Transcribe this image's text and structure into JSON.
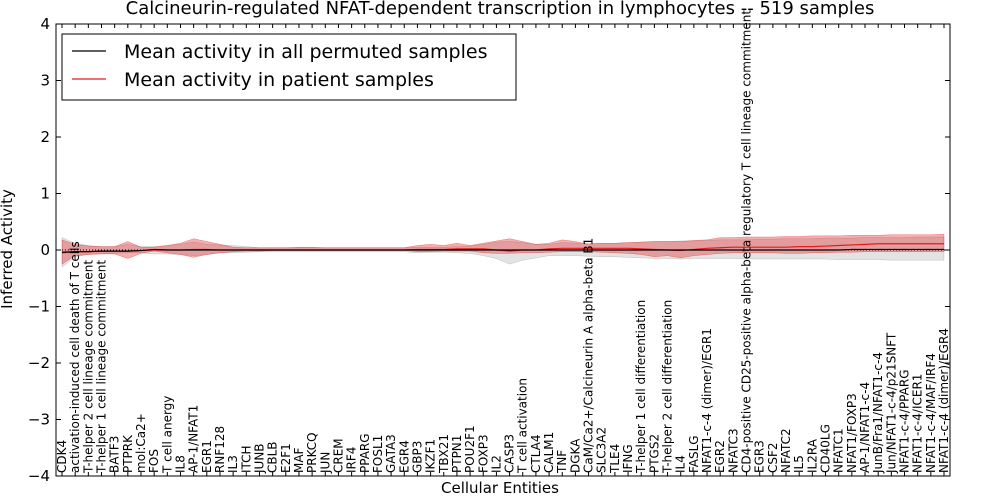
{
  "chart_data": {
    "type": "line",
    "title": "Calcineurin-regulated NFAT-dependent transcription in lymphocytes -- 519 samples",
    "xlabel": "Cellular Entities",
    "ylabel": "Inferred Activity",
    "ylim": [
      -4,
      4
    ],
    "yticks": [
      -4,
      -3,
      -2,
      -1,
      0,
      1,
      2,
      3,
      4
    ],
    "ytick_labels": [
      "−4",
      "−3",
      "−2",
      "−1",
      "0",
      "1",
      "2",
      "3",
      "4"
    ],
    "legend_position": "top-left",
    "categories": [
      "CDK4",
      "activation-induced cell death of T cells",
      "T-helper 2 cell lineage commitment",
      "T-helper 1 cell lineage commitment",
      "BATF3",
      "PTPRK",
      "mol:Ca2+",
      "FOS",
      "T cell anergy",
      "IL8",
      "AP-1/NFAT1",
      "EGR1",
      "RNF128",
      "IL3",
      "ITCH",
      "JUNB",
      "CBLB",
      "E2F1",
      "MAF",
      "PRKCQ",
      "JUN",
      "CREM",
      "IRF4",
      "PPARG",
      "FOSL1",
      "GATA3",
      "EGR4",
      "GBP3",
      "IKZF1",
      "TBX21",
      "PTPN1",
      "POU2F1",
      "FOXP3",
      "IL2",
      "CASP3",
      "T cell activation",
      "CTLA4",
      "CALM1",
      "TNF",
      "DGKA",
      "CaM/Ca2+/Calcineurin A alpha-beta B1",
      "SLC3A2",
      "TLE4",
      "IFNG",
      "T-helper 1 cell differentiation",
      "PTGS2",
      "T-helper 2 cell differentiation",
      "IL4",
      "FASLG",
      "NFAT1-c-4 (dimer)/EGR1",
      "EGR2",
      "NFATC3",
      "CD4-positive CD25-positive alpha-beta regulatory T cell lineage commitment",
      "EGR3",
      "CSF2",
      "NFATC2",
      "IL5",
      "IL2RA",
      "CD40LG",
      "NFATC1",
      "NFAT1/FOXP3",
      "AP-1/NFAT1-c-4",
      "JunB/Fra1/NFAT1-c-4",
      "Jun/NFAT1-c-4/p21SNFT",
      "NFAT1-c-4/PPARG",
      "NFAT1-c-4/ICER1",
      "NFAT1-c-4/MAF/IRF4",
      "NFAT1-c-4 (dimer)/EGR4"
    ],
    "series": [
      {
        "name": "Mean activity in all permuted samples",
        "color": "#000000",
        "values": [
          -0.04,
          -0.03,
          -0.03,
          -0.02,
          -0.02,
          -0.02,
          -0.01,
          0.01,
          0.0,
          0.0,
          0.0,
          0.0,
          0.0,
          0.0,
          0.0,
          0.0,
          0.0,
          0.0,
          0.0,
          0.0,
          0.0,
          0.0,
          0.0,
          0.0,
          0.0,
          0.0,
          0.0,
          0.0,
          0.0,
          0.0,
          0.0,
          0.0,
          0.0,
          0.0,
          0.0,
          0.0,
          0.0,
          0.0,
          0.0,
          0.0,
          0.0,
          0.0,
          0.0,
          0.0,
          0.0,
          0.0,
          0.0,
          0.0,
          0.0,
          0.0,
          0.0,
          0.0,
          0.0,
          0.0,
          0.0,
          0.0,
          0.0,
          0.0,
          0.0,
          0.0,
          0.01,
          0.01,
          0.01,
          0.01,
          0.01,
          0.01,
          0.01,
          0.01
        ],
        "band_low": [
          -0.3,
          -0.12,
          -0.08,
          -0.06,
          -0.06,
          -0.05,
          -0.05,
          -0.07,
          -0.07,
          -0.08,
          -0.1,
          -0.08,
          -0.05,
          -0.05,
          -0.04,
          -0.03,
          -0.03,
          -0.03,
          -0.03,
          -0.03,
          -0.03,
          -0.03,
          -0.03,
          -0.03,
          -0.03,
          -0.03,
          -0.03,
          -0.05,
          -0.04,
          -0.04,
          -0.05,
          -0.06,
          -0.1,
          -0.15,
          -0.25,
          -0.18,
          -0.14,
          -0.1,
          -0.1,
          -0.1,
          -0.11,
          -0.12,
          -0.12,
          -0.13,
          -0.14,
          -0.15,
          -0.15,
          -0.16,
          -0.15,
          -0.15,
          -0.15,
          -0.15,
          -0.16,
          -0.16,
          -0.16,
          -0.16,
          -0.16,
          -0.16,
          -0.16,
          -0.17,
          -0.17,
          -0.17,
          -0.17,
          -0.18,
          -0.18,
          -0.18,
          -0.18,
          -0.18
        ],
        "band_high": [
          0.22,
          0.12,
          0.08,
          0.06,
          0.06,
          0.1,
          0.06,
          0.06,
          0.08,
          0.1,
          0.14,
          0.1,
          0.09,
          0.08,
          0.06,
          0.04,
          0.04,
          0.04,
          0.04,
          0.04,
          0.04,
          0.04,
          0.04,
          0.04,
          0.04,
          0.04,
          0.04,
          0.05,
          0.05,
          0.05,
          0.06,
          0.07,
          0.1,
          0.14,
          0.15,
          0.13,
          0.1,
          0.1,
          0.13,
          0.12,
          0.12,
          0.12,
          0.12,
          0.13,
          0.14,
          0.15,
          0.15,
          0.16,
          0.16,
          0.17,
          0.18,
          0.18,
          0.18,
          0.19,
          0.19,
          0.2,
          0.2,
          0.2,
          0.21,
          0.21,
          0.21,
          0.22,
          0.22,
          0.22,
          0.22,
          0.23,
          0.23,
          0.23
        ]
      },
      {
        "name": "Mean activity in patient samples",
        "color": "#e31a1c",
        "values": [
          -0.05,
          -0.03,
          -0.03,
          -0.02,
          -0.02,
          -0.02,
          -0.01,
          0.0,
          0.0,
          0.0,
          0.01,
          0.01,
          0.0,
          0.0,
          0.0,
          0.0,
          0.0,
          0.0,
          0.0,
          0.0,
          0.0,
          0.0,
          0.0,
          0.0,
          0.0,
          0.0,
          0.0,
          0.01,
          0.01,
          0.01,
          0.02,
          0.02,
          0.02,
          0.0,
          -0.02,
          0.0,
          0.0,
          0.02,
          0.03,
          0.03,
          0.03,
          0.03,
          0.03,
          0.03,
          0.02,
          0.01,
          0.0,
          -0.01,
          0.01,
          0.03,
          0.04,
          0.05,
          0.05,
          0.05,
          0.05,
          0.05,
          0.06,
          0.06,
          0.07,
          0.08,
          0.09,
          0.1,
          0.11,
          0.11,
          0.11,
          0.11,
          0.11,
          0.11
        ],
        "band_low": [
          -0.25,
          -0.1,
          -0.08,
          -0.07,
          -0.07,
          -0.15,
          -0.06,
          -0.02,
          -0.05,
          -0.08,
          -0.13,
          -0.08,
          -0.05,
          -0.03,
          -0.02,
          -0.02,
          -0.01,
          -0.01,
          -0.01,
          -0.01,
          -0.01,
          -0.01,
          -0.01,
          -0.01,
          -0.01,
          -0.01,
          -0.01,
          -0.03,
          -0.03,
          -0.02,
          -0.02,
          -0.02,
          -0.05,
          -0.06,
          -0.06,
          -0.05,
          -0.05,
          -0.04,
          -0.03,
          -0.03,
          -0.03,
          -0.04,
          -0.05,
          -0.06,
          -0.08,
          -0.12,
          -0.1,
          -0.14,
          -0.1,
          -0.08,
          -0.06,
          -0.05,
          -0.05,
          -0.05,
          -0.05,
          -0.06,
          -0.06,
          -0.05,
          -0.05,
          -0.04,
          -0.04,
          -0.03,
          -0.03,
          -0.03,
          -0.03,
          -0.03,
          -0.03,
          -0.03
        ],
        "band_high": [
          0.18,
          0.1,
          0.07,
          0.06,
          0.06,
          0.15,
          0.05,
          0.05,
          0.08,
          0.12,
          0.2,
          0.15,
          0.1,
          0.05,
          0.04,
          0.04,
          0.04,
          0.04,
          0.05,
          0.05,
          0.04,
          0.04,
          0.04,
          0.04,
          0.04,
          0.04,
          0.04,
          0.08,
          0.1,
          0.08,
          0.12,
          0.08,
          0.12,
          0.16,
          0.2,
          0.15,
          0.1,
          0.12,
          0.18,
          0.15,
          0.1,
          0.12,
          0.12,
          0.13,
          0.14,
          0.15,
          0.15,
          0.15,
          0.17,
          0.18,
          0.22,
          0.22,
          0.23,
          0.23,
          0.23,
          0.24,
          0.24,
          0.25,
          0.25,
          0.25,
          0.26,
          0.26,
          0.26,
          0.27,
          0.27,
          0.27,
          0.27,
          0.28
        ]
      }
    ],
    "baseline": 0,
    "baseline_style": "dotted"
  }
}
